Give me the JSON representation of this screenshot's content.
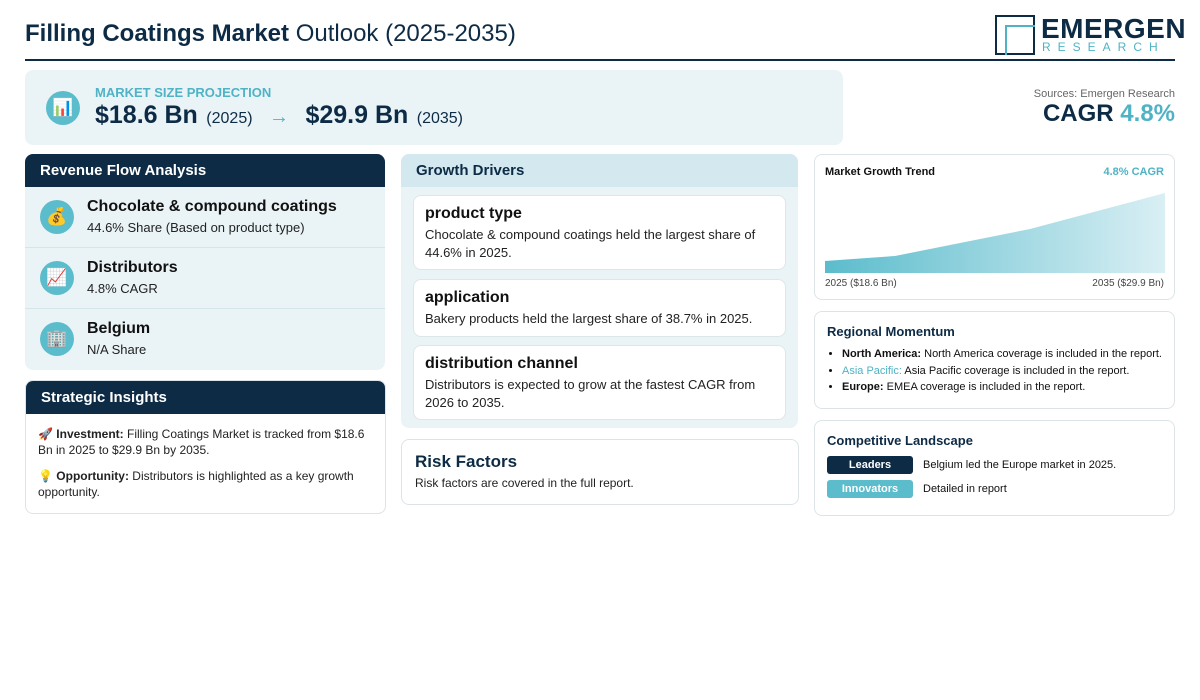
{
  "header": {
    "title_bold": "Filling Coatings Market",
    "title_rest": "Outlook (2025-2035)",
    "logo_top": "EMERGEN",
    "logo_bottom": "RESEARCH"
  },
  "projection": {
    "icon": "📊",
    "label": "MARKET SIZE PROJECTION",
    "start_value": "$18.6 Bn",
    "start_year": "(2025)",
    "arrow": "→",
    "end_value": "$29.9 Bn",
    "end_year": "(2035)"
  },
  "summary": {
    "source": "Sources: Emergen Research",
    "cagr_label": "CAGR",
    "cagr_value": "4.8%"
  },
  "revenue_flow": {
    "title": "Revenue Flow Analysis",
    "items": [
      {
        "icon": "💰",
        "title": "Chocolate & compound coatings",
        "subtitle": "44.6% Share (Based on product type)"
      },
      {
        "icon": "📈",
        "title": "Distributors",
        "subtitle": "4.8% CAGR"
      },
      {
        "icon": "🏢",
        "title": "Belgium",
        "subtitle": "N/A Share"
      }
    ]
  },
  "strategic_insights": {
    "title": "Strategic Insights",
    "items": [
      {
        "icon": "🚀",
        "label": "Investment:",
        "text": "Filling Coatings Market is tracked from $18.6 Bn in 2025 to $29.9 Bn by 2035."
      },
      {
        "icon": "💡",
        "label": "Opportunity:",
        "text": "Distributors is highlighted as a key growth opportunity."
      }
    ]
  },
  "growth_drivers": {
    "title": "Growth Drivers",
    "items": [
      {
        "title": "product type",
        "text": "Chocolate & compound coatings held the largest share of 44.6% in 2025."
      },
      {
        "title": "application",
        "text": "Bakery products held the largest share of 38.7% in 2025."
      },
      {
        "title": "distribution channel",
        "text": "Distributors is expected to grow at the fastest CAGR from 2026 to 2035."
      }
    ]
  },
  "risk_factors": {
    "title": "Risk Factors",
    "text": "Risk factors are covered in the full report."
  },
  "growth_trend": {
    "title": "Market Growth Trend",
    "badge": "4.8% CAGR",
    "start_label": "2025 ($18.6 Bn)",
    "end_label": "2035 ($29.9 Bn)"
  },
  "regional_momentum": {
    "title": "Regional Momentum",
    "items": [
      {
        "region": "North America:",
        "text": "North America coverage is included in the report."
      },
      {
        "region": "Asia Pacific:",
        "text": "Asia Pacific coverage is included in the report."
      },
      {
        "region": "Europe:",
        "text": "EMEA coverage is included in the report."
      }
    ]
  },
  "competitive_landscape": {
    "title": "Competitive Landscape",
    "rows": [
      {
        "tag": "Leaders",
        "text": "Belgium led the Europe market in 2025."
      },
      {
        "tag": "Innovators",
        "text": "Detailed in report"
      }
    ]
  }
}
